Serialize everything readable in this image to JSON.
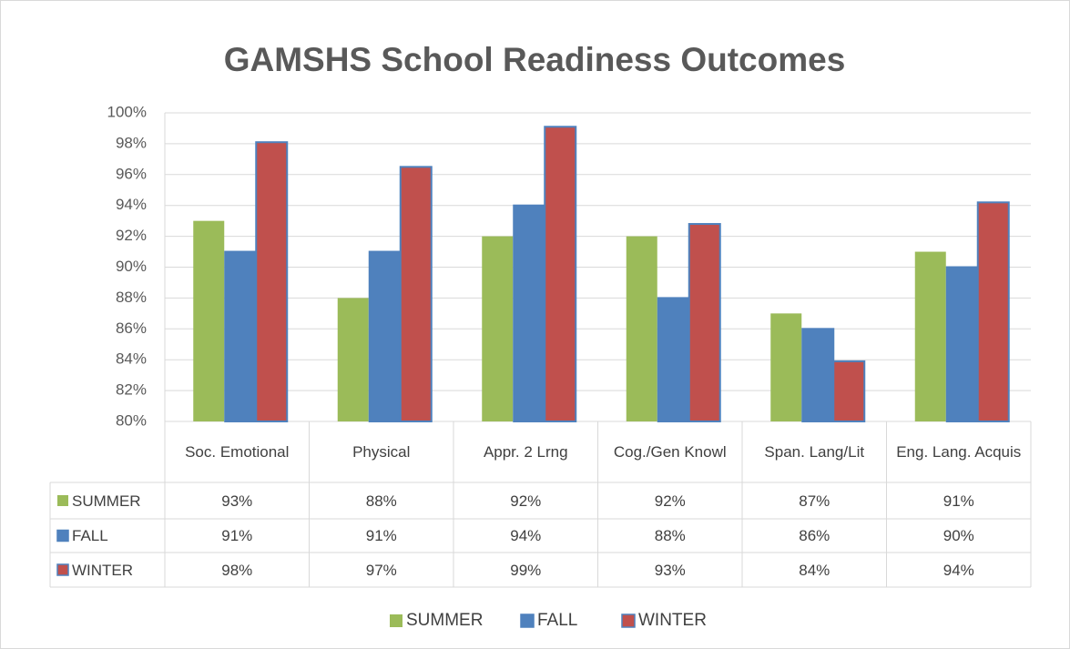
{
  "chart_data": {
    "type": "bar",
    "title": "GAMSHS School Readiness Outcomes",
    "categories": [
      "Soc. Emotional",
      "Physical",
      "Appr. 2 Lrng",
      "Cog./Gen Knowl",
      "Span. Lang/Lit",
      "Eng. Lang. Acquis"
    ],
    "series": [
      {
        "name": "SUMMER",
        "color": "#9bbb59",
        "values": [
          93,
          88,
          92,
          92,
          87,
          91
        ],
        "value_labels": [
          "93%",
          "88%",
          "92%",
          "92%",
          "87%",
          "91%"
        ]
      },
      {
        "name": "FALL",
        "color": "#4f81bd",
        "values": [
          91,
          91,
          94,
          88,
          86,
          90
        ],
        "value_labels": [
          "91%",
          "91%",
          "94%",
          "88%",
          "86%",
          "90%"
        ]
      },
      {
        "name": "WINTER",
        "color": "#c0504d",
        "values": [
          98.1,
          96.5,
          99.1,
          92.8,
          83.9,
          94.2
        ],
        "value_labels": [
          "98%",
          "97%",
          "99%",
          "93%",
          "84%",
          "94%"
        ]
      }
    ],
    "ylim": [
      80,
      100
    ],
    "yticks": [
      {
        "value": 80,
        "label": "80%"
      },
      {
        "value": 82,
        "label": "82%"
      },
      {
        "value": 84,
        "label": "84%"
      },
      {
        "value": 86,
        "label": "86%"
      },
      {
        "value": 88,
        "label": "88%"
      },
      {
        "value": 90,
        "label": "90%"
      },
      {
        "value": 92,
        "label": "92%"
      },
      {
        "value": 94,
        "label": "94%"
      },
      {
        "value": 96,
        "label": "96%"
      },
      {
        "value": 98,
        "label": "98%"
      },
      {
        "value": 100,
        "label": "100%"
      }
    ],
    "grid": true,
    "legend": "bottom"
  }
}
